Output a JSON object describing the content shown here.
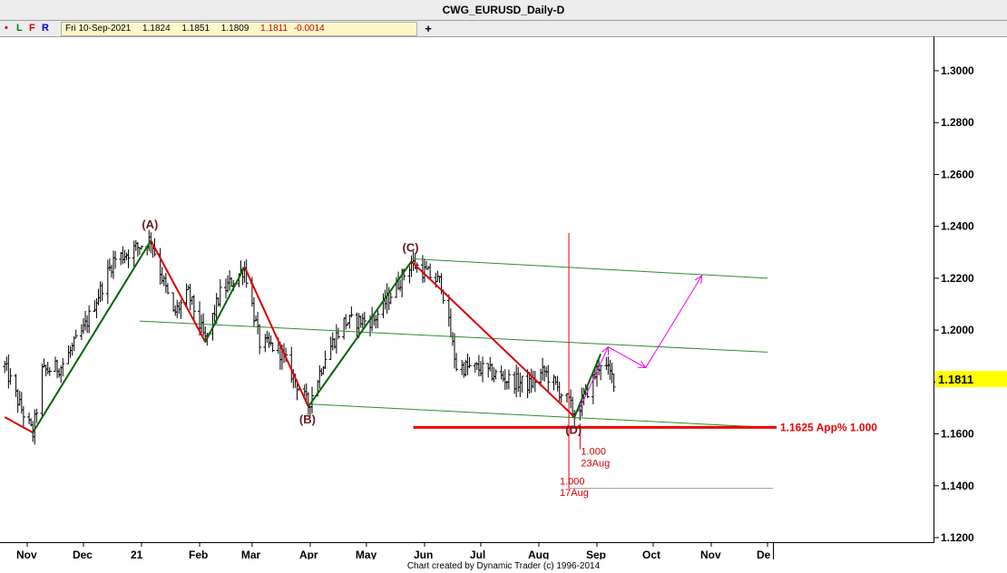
{
  "window": {
    "title": "CWG_EURUSD_Daily-D"
  },
  "toolbar": {
    "dot": "•",
    "btn_l": "L",
    "btn_f": "F",
    "btn_r": "R",
    "quote": {
      "date": "Fri 10-Sep-2021",
      "open": "1.1824",
      "high": "1.1851",
      "low": "1.1809",
      "close": "1.1811",
      "change": "-0.0014"
    },
    "plus": "+"
  },
  "footer": {
    "credit": "Chart created by Dynamic Trader  (c)  1996-2014"
  },
  "colors": {
    "bars": "#000000",
    "impulse_down": "#dd0000",
    "impulse_up": "#006400",
    "channel": "#2e8b2e",
    "projection": "#ee00ee",
    "support": "#ee0000",
    "price_tag": "#ffff00"
  },
  "chart_data": {
    "type": "ohlc",
    "ylim": [
      1.12,
      1.305
    ],
    "yticks": [
      "1.1200",
      "1.1400",
      "1.1600",
      "1.1800",
      "1.2000",
      "1.2200",
      "1.2400",
      "1.2600",
      "1.2800",
      "1.3000"
    ],
    "xticks": [
      {
        "label": "Nov",
        "date": "2020-11-01"
      },
      {
        "label": "Dec",
        "date": "2020-12-01"
      },
      {
        "label": "21",
        "date": "2021-01-01"
      },
      {
        "label": "Feb",
        "date": "2021-02-01"
      },
      {
        "label": "Mar",
        "date": "2021-03-01"
      },
      {
        "label": "Apr",
        "date": "2021-04-01"
      },
      {
        "label": "May",
        "date": "2021-05-01"
      },
      {
        "label": "Jun",
        "date": "2021-06-01"
      },
      {
        "label": "Jul",
        "date": "2021-07-01"
      },
      {
        "label": "Aug",
        "date": "2021-08-01"
      },
      {
        "label": "Sep",
        "date": "2021-09-01"
      },
      {
        "label": "Oct",
        "date": "2021-10-01"
      },
      {
        "label": "Nov",
        "date": "2021-11-01"
      },
      {
        "label": "De",
        "date": "2021-12-01"
      }
    ],
    "last_price": "1.1811",
    "price_path": [
      [
        "2020-10-20",
        1.186
      ],
      [
        "2020-10-28",
        1.171
      ],
      [
        "2020-11-04",
        1.16
      ],
      [
        "2020-11-09",
        1.184
      ],
      [
        "2020-11-19",
        1.186
      ],
      [
        "2020-12-01",
        1.2
      ],
      [
        "2020-12-08",
        1.212
      ],
      [
        "2020-12-17",
        1.227
      ],
      [
        "2020-12-30",
        1.232
      ],
      [
        "2021-01-06",
        1.235
      ],
      [
        "2021-01-18",
        1.206
      ],
      [
        "2021-01-26",
        1.214
      ],
      [
        "2021-02-04",
        1.196
      ],
      [
        "2021-02-12",
        1.214
      ],
      [
        "2021-02-25",
        1.224
      ],
      [
        "2021-03-05",
        1.195
      ],
      [
        "2021-03-15",
        1.193
      ],
      [
        "2021-03-31",
        1.171
      ],
      [
        "2021-04-09",
        1.19
      ],
      [
        "2021-04-19",
        1.203
      ],
      [
        "2021-05-05",
        1.204
      ],
      [
        "2021-05-25",
        1.226
      ],
      [
        "2021-06-10",
        1.218
      ],
      [
        "2021-06-18",
        1.186
      ],
      [
        "2021-07-01",
        1.185
      ],
      [
        "2021-07-15",
        1.181
      ],
      [
        "2021-07-27",
        1.179
      ],
      [
        "2021-08-04",
        1.184
      ],
      [
        "2021-08-17",
        1.172
      ],
      [
        "2021-08-20",
        1.167
      ],
      [
        "2021-08-30",
        1.181
      ],
      [
        "2021-09-03",
        1.188
      ],
      [
        "2021-09-10",
        1.181
      ]
    ],
    "swing_labels": [
      {
        "label": "(A)",
        "date": "2021-01-06",
        "price": 1.235
      },
      {
        "label": "(B)",
        "date": "2021-03-31",
        "price": 1.171
      },
      {
        "label": "(C)",
        "date": "2021-05-25",
        "price": 1.226
      },
      {
        "label": "(D)",
        "date": "2021-08-20",
        "price": 1.167
      }
    ],
    "zigzag_down": [
      [
        [
          "2020-10-20",
          1.1665
        ],
        [
          "2020-11-04",
          1.1605
        ]
      ],
      [
        [
          "2021-01-06",
          1.2345
        ],
        [
          "2021-02-04",
          1.1955
        ]
      ],
      [
        [
          "2021-02-25",
          1.2243
        ],
        [
          "2021-03-31",
          1.1705
        ]
      ],
      [
        [
          "2021-05-25",
          1.2265
        ],
        [
          "2021-08-20",
          1.1665
        ]
      ]
    ],
    "zigzag_up": [
      [
        [
          "2020-11-04",
          1.1605
        ],
        [
          "2021-01-06",
          1.2345
        ]
      ],
      [
        [
          "2021-02-04",
          1.1955
        ],
        [
          "2021-02-25",
          1.2243
        ]
      ],
      [
        [
          "2021-03-31",
          1.1705
        ],
        [
          "2021-05-25",
          1.2265
        ]
      ],
      [
        [
          "2021-08-20",
          1.1665
        ],
        [
          "2021-09-03",
          1.1908
        ]
      ]
    ],
    "channel_lines": [
      [
        [
          "2020-12-31",
          1.2035
        ],
        [
          "2021-12-01",
          1.1915
        ]
      ],
      [
        [
          "2021-03-31",
          1.1715
        ],
        [
          "2021-12-01",
          1.1625
        ]
      ],
      [
        [
          "2021-05-25",
          1.2275
        ],
        [
          "2021-12-01",
          1.22
        ]
      ]
    ],
    "projection": [
      [
        "2021-08-22",
        1.1685
      ],
      [
        "2021-09-07",
        1.1935
      ],
      [
        "2021-09-27",
        1.1855
      ],
      [
        "2021-10-27",
        1.221
      ]
    ],
    "support": {
      "price": 1.1625,
      "start": "2021-05-26",
      "label": "1.1625 App% 1.000"
    },
    "time_markers": [
      {
        "date": "2021-08-17",
        "ratio": "1.000",
        "label": "17Aug"
      },
      {
        "date": "2021-08-23",
        "ratio": "1.000",
        "label": "23Aug"
      }
    ]
  }
}
